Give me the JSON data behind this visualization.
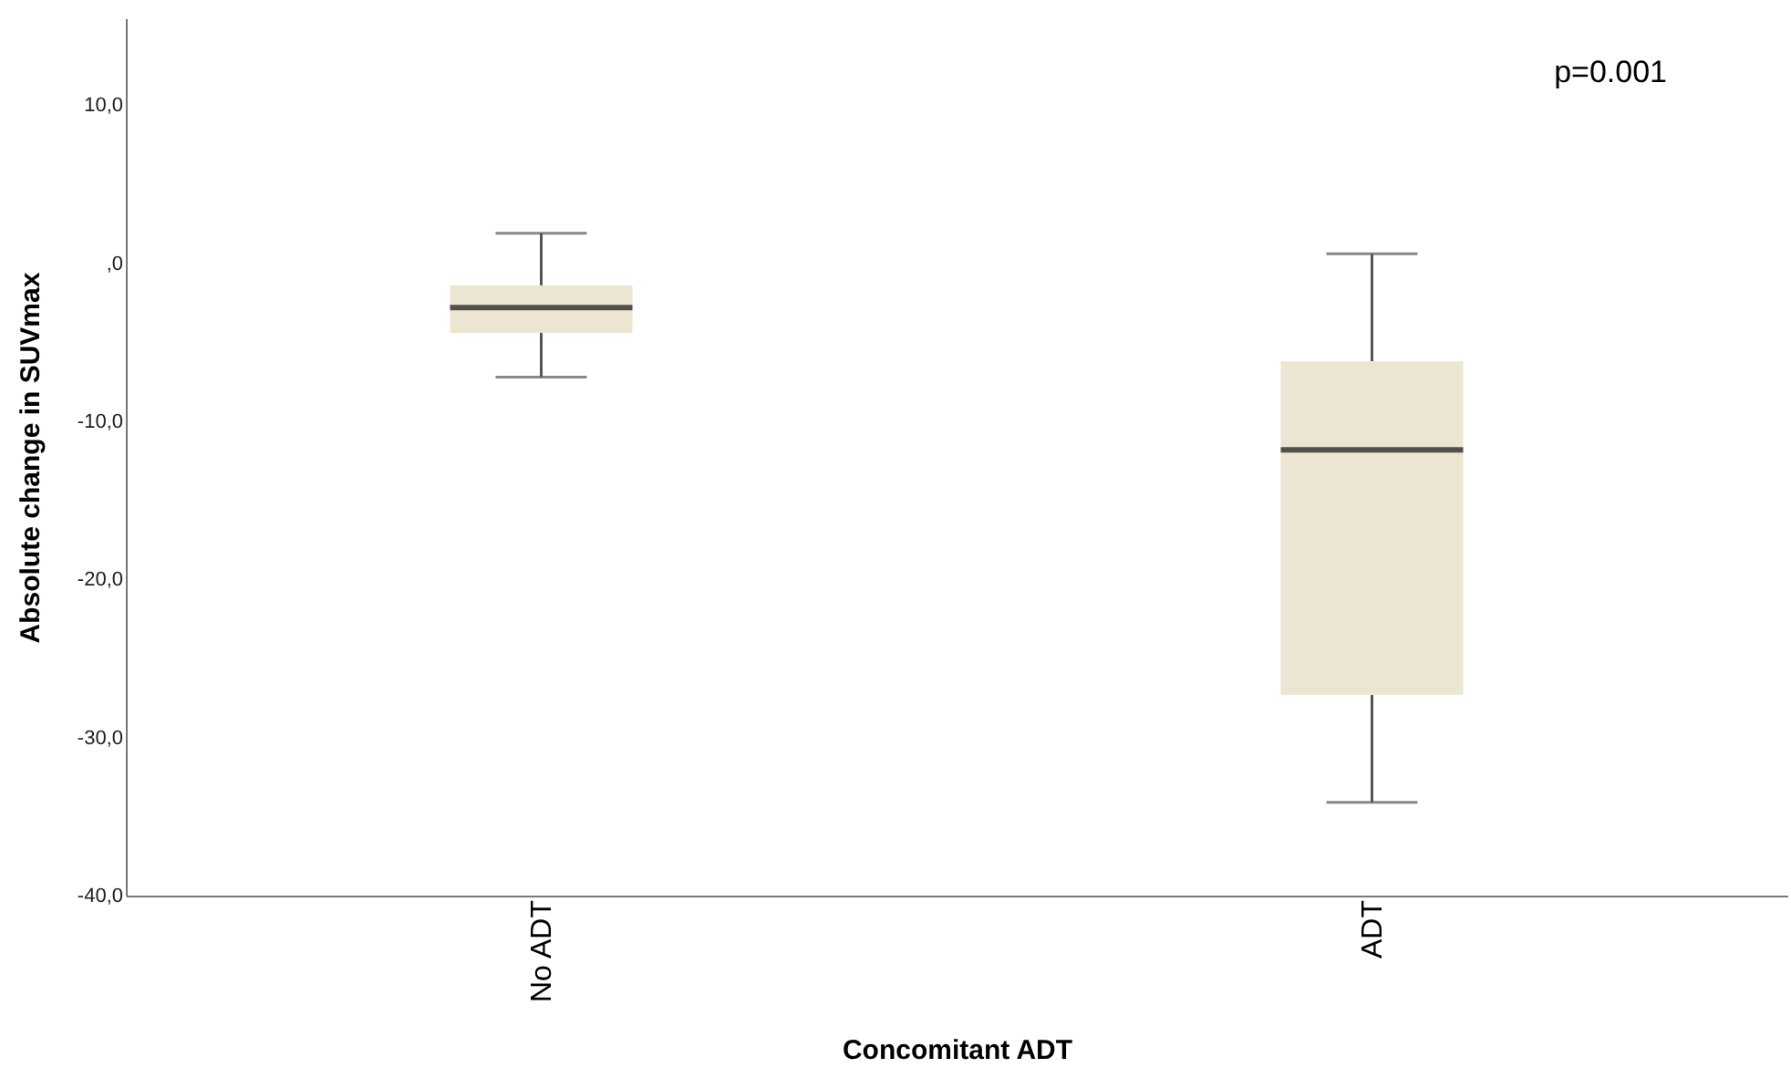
{
  "chart_data": {
    "type": "box",
    "xlabel": "Concomitant ADT",
    "ylabel": "Absolute change in SUVmax",
    "categories": [
      "No ADT",
      "ADT"
    ],
    "boxes": [
      {
        "low": -7.2,
        "q1": -4.4,
        "median": -2.8,
        "q3": -1.4,
        "high": 1.9
      },
      {
        "low": -34.1,
        "q1": -27.3,
        "median": -11.8,
        "q3": -6.2,
        "high": 0.6
      }
    ],
    "color": "#ebe5d1",
    "ylim": [
      -40,
      15.5
    ],
    "yticks": [
      {
        "value": 10,
        "label": "10,0"
      },
      {
        "value": 0,
        "label": ",0"
      },
      {
        "value": -10,
        "label": "-10,0"
      },
      {
        "value": -20,
        "label": "-20,0"
      },
      {
        "value": -30,
        "label": "-30,0"
      },
      {
        "value": -40,
        "label": "-40,0"
      }
    ],
    "grid": false,
    "annotations": [
      "p=0.001"
    ]
  }
}
